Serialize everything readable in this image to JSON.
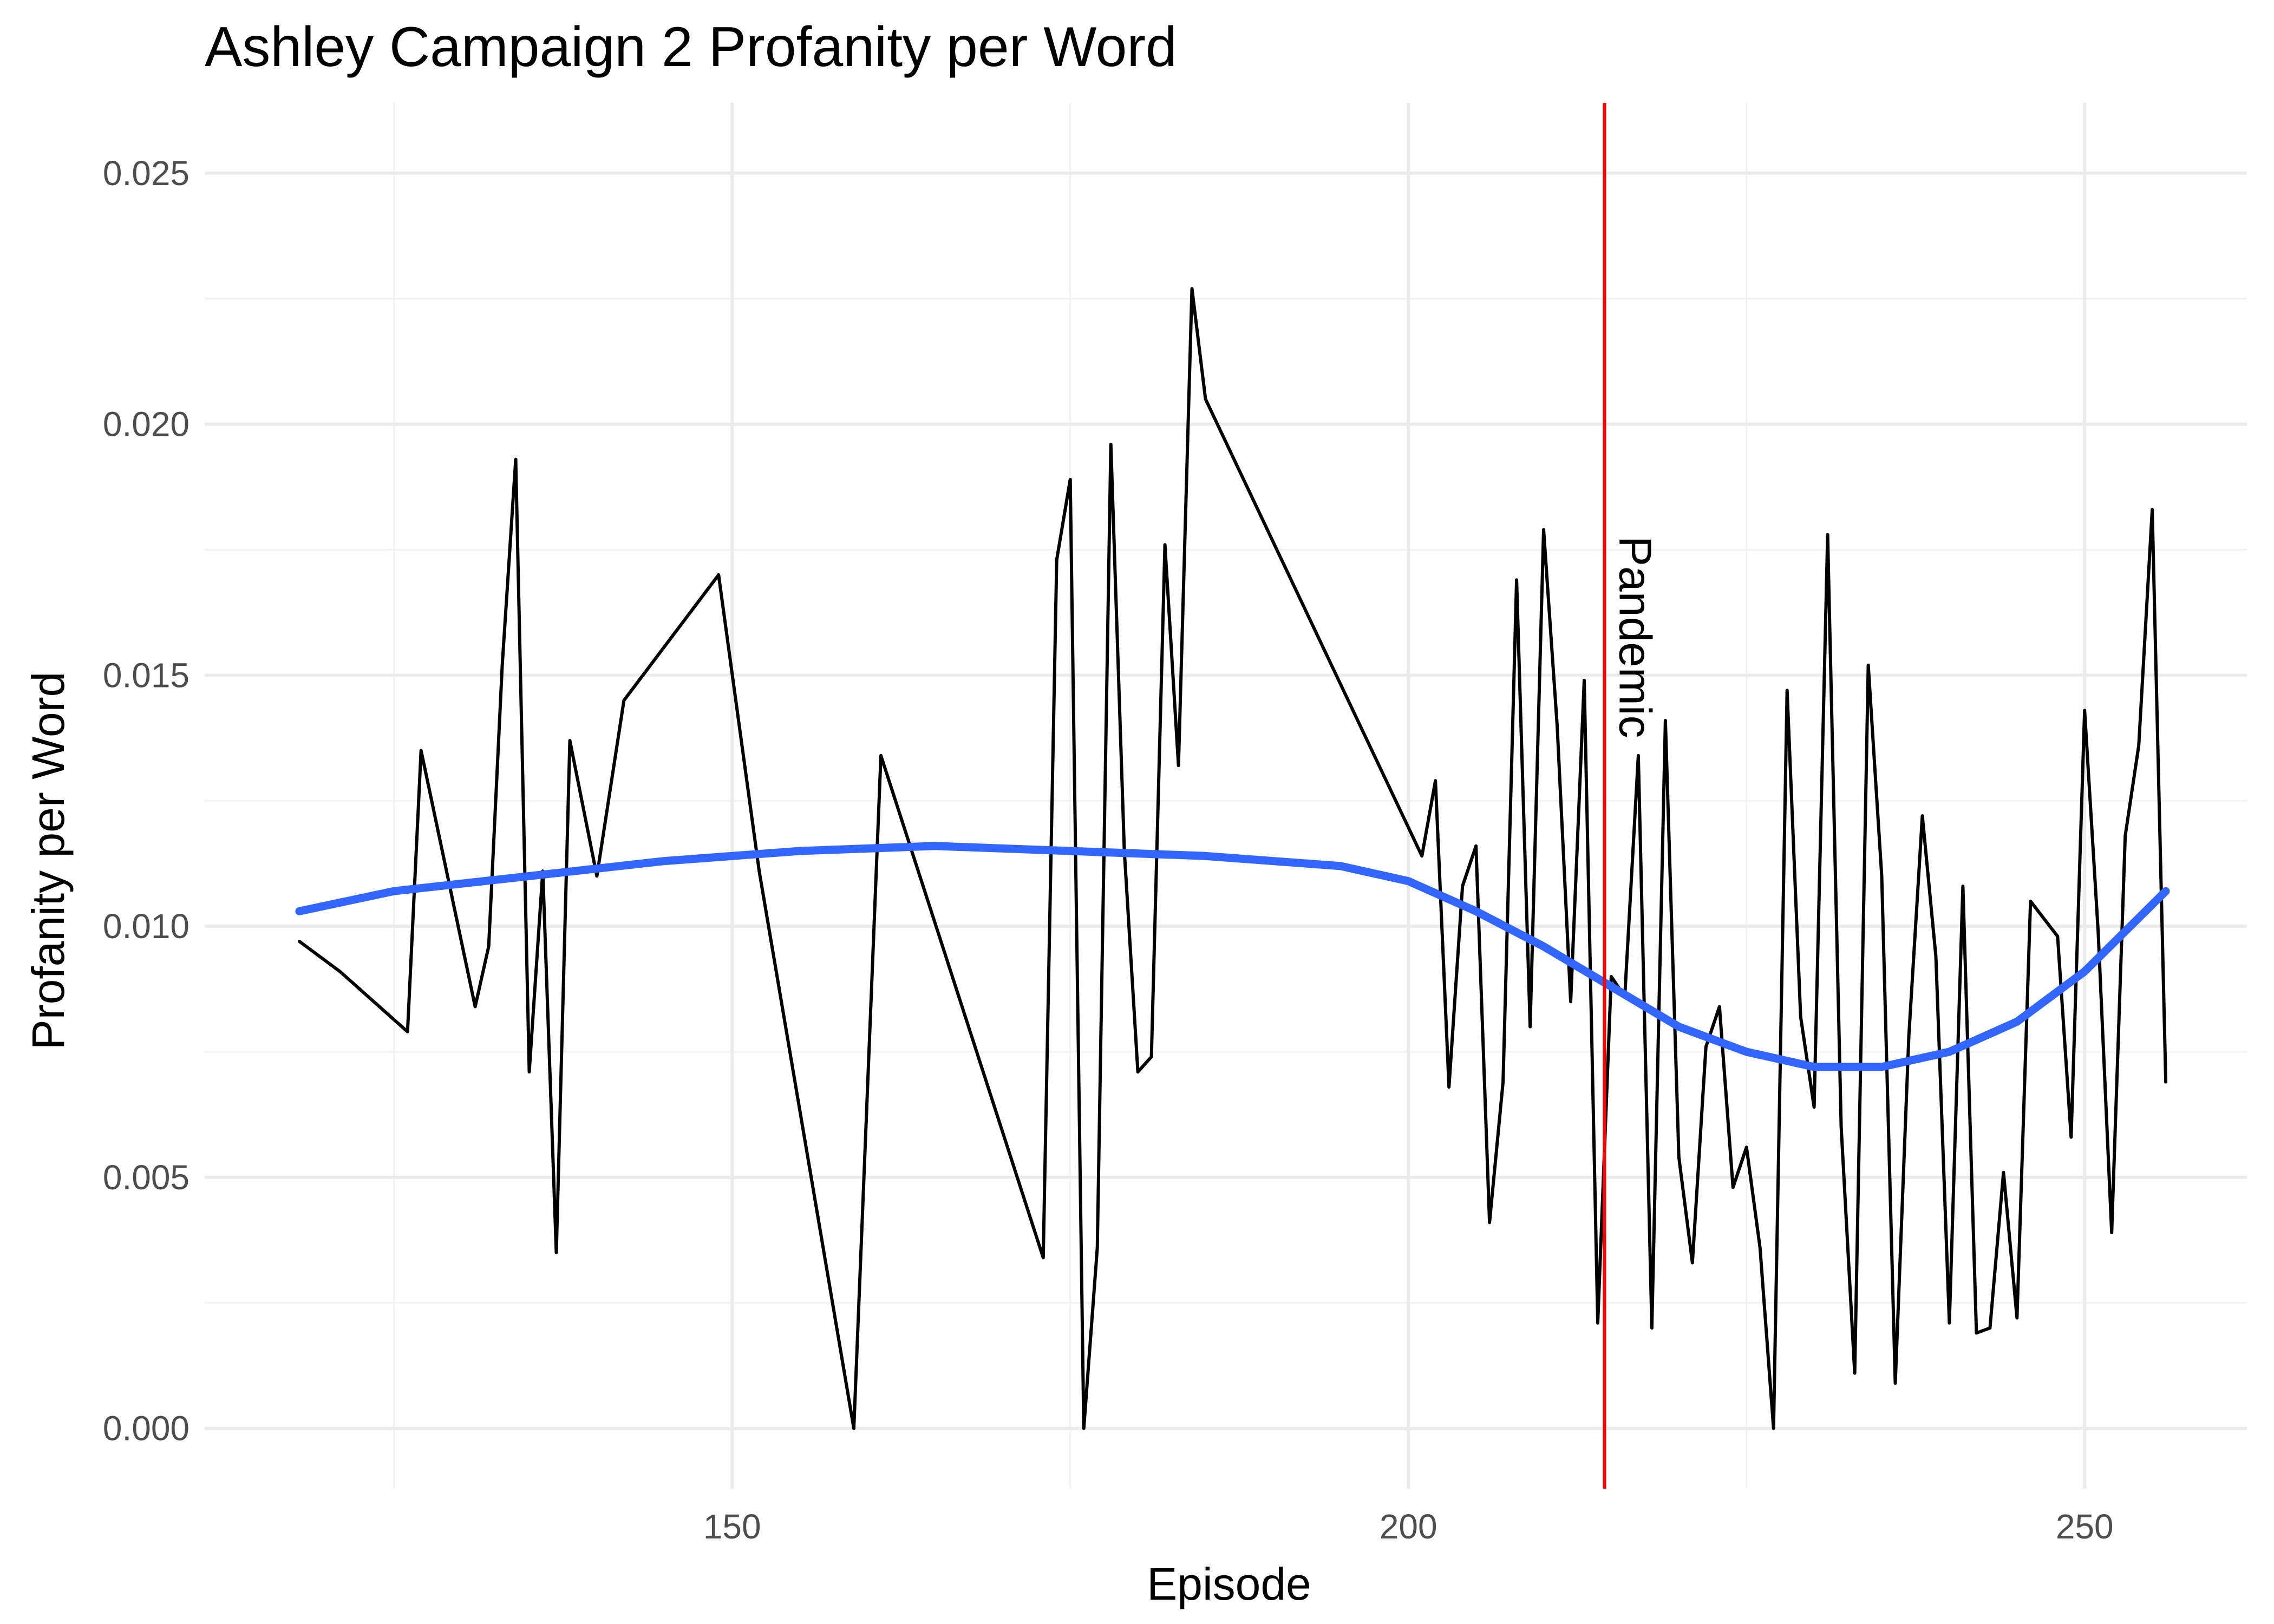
{
  "chart_data": {
    "type": "line",
    "title": "Ashley Campaign 2 Profanity per Word",
    "xlabel": "Episode",
    "ylabel": "Profanity per Word",
    "xlim": [
      111,
      262
    ],
    "ylim": [
      -0.0012,
      0.0264
    ],
    "x_ticks": [
      150,
      200,
      250
    ],
    "y_ticks": [
      0.0,
      0.005,
      0.01,
      0.015,
      0.02,
      0.025
    ],
    "y_tick_labels": [
      "0.000",
      "0.005",
      "0.010",
      "0.015",
      "0.020",
      "0.025"
    ],
    "grid": true,
    "legend": "none",
    "series": [
      {
        "color": "#000000",
        "x": [
          118,
          121,
          126,
          127,
          131,
          132,
          133,
          134,
          135,
          136,
          137,
          138,
          140,
          142,
          149,
          152,
          159,
          161,
          173,
          174,
          175,
          176,
          177,
          178,
          179,
          180,
          181,
          182,
          183,
          184,
          185,
          201,
          202,
          203,
          204,
          205,
          206,
          207,
          208,
          209,
          210,
          211,
          212,
          213,
          214,
          215,
          216,
          217,
          218,
          219,
          220,
          221,
          222,
          223,
          224,
          225,
          226,
          227,
          228,
          229,
          230,
          231,
          232,
          233,
          234,
          235,
          236,
          237,
          238,
          239,
          240,
          241,
          242,
          243,
          244,
          245,
          246,
          248,
          249,
          250,
          251,
          252,
          253,
          254,
          255,
          256
        ],
        "y": [
          0.0097,
          0.0091,
          0.0079,
          0.0135,
          0.0084,
          0.0096,
          0.0152,
          0.0193,
          0.0071,
          0.0111,
          0.0035,
          0.0137,
          0.011,
          0.0145,
          0.017,
          0.0111,
          0.0,
          0.0134,
          0.0034,
          0.0173,
          0.0189,
          0.0,
          0.0036,
          0.0196,
          0.0115,
          0.0071,
          0.0074,
          0.0176,
          0.0132,
          0.0227,
          0.0205,
          0.0114,
          0.0129,
          0.0068,
          0.0108,
          0.0116,
          0.0041,
          0.0069,
          0.0169,
          0.008,
          0.0179,
          0.014,
          0.0085,
          0.0149,
          0.0021,
          0.009,
          0.0086,
          0.0134,
          0.002,
          0.0141,
          0.0054,
          0.0033,
          0.0076,
          0.0084,
          0.0048,
          0.0056,
          0.0036,
          0.0,
          0.0147,
          0.0082,
          0.0064,
          0.0178,
          0.006,
          0.0011,
          0.0152,
          0.011,
          0.0009,
          0.0078,
          0.0122,
          0.0094,
          0.0021,
          0.0108,
          0.0019,
          0.002,
          0.0051,
          0.0022,
          0.0105,
          0.0098,
          0.0058,
          0.0143,
          0.0099,
          0.0039,
          0.0118,
          0.0136,
          0.0183,
          0.0069
        ]
      },
      {
        "color": "#3366ff",
        "x": [
          118,
          125,
          135,
          145,
          155,
          165,
          175,
          185,
          195,
          200,
          205,
          210,
          215,
          220,
          225,
          230,
          235,
          240,
          245,
          250,
          256
        ],
        "y": [
          0.0103,
          0.0107,
          0.011,
          0.0113,
          0.0115,
          0.0116,
          0.0115,
          0.0114,
          0.0112,
          0.0109,
          0.0103,
          0.0096,
          0.0088,
          0.008,
          0.0075,
          0.0072,
          0.0072,
          0.0075,
          0.0081,
          0.0091,
          0.0107
        ]
      }
    ],
    "vline": {
      "x": 214.5,
      "color": "#ff0000",
      "label": "Pandemic"
    }
  }
}
